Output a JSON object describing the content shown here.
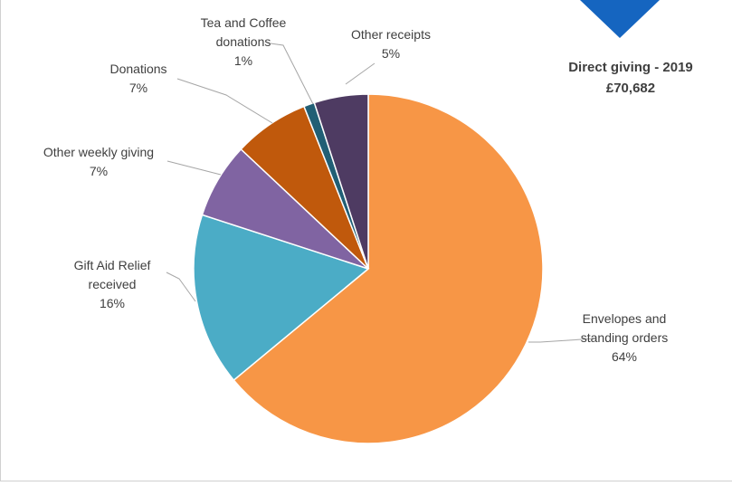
{
  "chart_data": {
    "type": "pie",
    "title": "Direct giving - 2019",
    "subtitle": "£70,682",
    "series": [
      {
        "name": "Envelopes and standing orders",
        "value": 64,
        "label": "64%"
      },
      {
        "name": "Gift Aid Relief received",
        "value": 16,
        "label": "16%"
      },
      {
        "name": "Other weekly giving",
        "value": 7,
        "label": "7%"
      },
      {
        "name": "Donations",
        "value": 7,
        "label": "7%"
      },
      {
        "name": "Tea and Coffee donations",
        "value": 1,
        "label": "1%"
      },
      {
        "name": "Other receipts",
        "value": 5,
        "label": "5%"
      }
    ],
    "colors": [
      "#f79646",
      "#4bacc6",
      "#8064a2",
      "#c0590c",
      "#215f75",
      "#4e3b62"
    ],
    "legend": "none",
    "grid": false
  },
  "decor": {
    "corner_marker_color": "#1f6fc5"
  }
}
